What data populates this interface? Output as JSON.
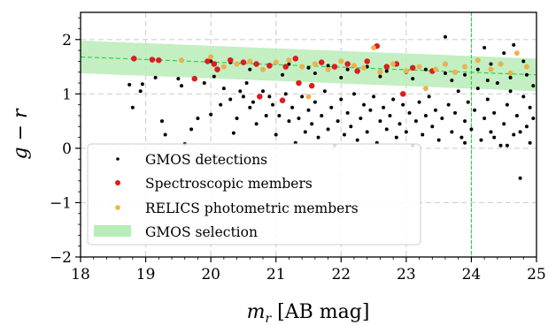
{
  "chart_data": {
    "type": "scatter",
    "xlabel": "m_r [AB mag]",
    "ylabel": "g − r",
    "xlim": [
      18,
      25
    ],
    "ylim": [
      -2,
      2.5
    ],
    "x_ticks": [
      18,
      19,
      20,
      21,
      22,
      23,
      24,
      25
    ],
    "y_ticks": [
      -2,
      -1,
      0,
      1,
      2
    ],
    "x_tick_labels": [
      "18",
      "19",
      "20",
      "21",
      "22",
      "23",
      "24",
      "25"
    ],
    "y_tick_labels": [
      "−2",
      "−1",
      "0",
      "1",
      "2"
    ],
    "grid": true,
    "legend_position": "lower-left",
    "vertical_line": {
      "x": 24,
      "color": "#2ecc40"
    },
    "selection_band": {
      "name": "GMOS selection",
      "color": "#b8ecb8",
      "center_line": [
        [
          18,
          1.68
        ],
        [
          25,
          1.35
        ]
      ],
      "half_width": 0.3
    },
    "series": [
      {
        "name": "GMOS detections",
        "color": "#000000",
        "marker_size": 2,
        "points": [
          [
            18.75,
            1.17
          ],
          [
            18.8,
            0.75
          ],
          [
            18.92,
            1.05
          ],
          [
            18.95,
            1.18
          ],
          [
            19.15,
            1.3
          ],
          [
            19.25,
            0.5
          ],
          [
            19.3,
            0.25
          ],
          [
            19.5,
            1.28
          ],
          [
            19.55,
            1.15
          ],
          [
            19.6,
            0.08
          ],
          [
            19.7,
            0.35
          ],
          [
            19.8,
            0.55
          ],
          [
            19.9,
            1.2
          ],
          [
            20.0,
            0.62
          ],
          [
            20.05,
            1.32
          ],
          [
            20.15,
            0.8
          ],
          [
            20.2,
            1.1
          ],
          [
            20.3,
            0.9
          ],
          [
            20.35,
            0.28
          ],
          [
            20.4,
            0.55
          ],
          [
            20.45,
            1.05
          ],
          [
            20.5,
            0.95
          ],
          [
            20.55,
            1.2
          ],
          [
            20.6,
            0.75
          ],
          [
            20.65,
            0.85
          ],
          [
            20.7,
            0.45
          ],
          [
            20.8,
            1.05
          ],
          [
            20.85,
            0.6
          ],
          [
            20.9,
            0.95
          ],
          [
            20.95,
            0.8
          ],
          [
            21.0,
            0.25
          ],
          [
            21.05,
            0.6
          ],
          [
            21.1,
            0.9
          ],
          [
            21.15,
            1.0
          ],
          [
            21.2,
            0.5
          ],
          [
            21.25,
            0.75
          ],
          [
            21.3,
            0.1
          ],
          [
            21.35,
            0.55
          ],
          [
            21.4,
            0.95
          ],
          [
            21.45,
            0.3
          ],
          [
            21.5,
            0.7
          ],
          [
            21.55,
            0.45
          ],
          [
            21.6,
            0.85
          ],
          [
            21.65,
            0.2
          ],
          [
            21.7,
            0.6
          ],
          [
            21.75,
            1.05
          ],
          [
            21.8,
            0.35
          ],
          [
            21.85,
            0.75
          ],
          [
            21.9,
            0.05
          ],
          [
            21.95,
            0.5
          ],
          [
            22.0,
            0.9
          ],
          [
            22.05,
            0.25
          ],
          [
            22.1,
            0.65
          ],
          [
            22.15,
            0.4
          ],
          [
            22.2,
            1.0
          ],
          [
            22.25,
            0.15
          ],
          [
            22.3,
            0.55
          ],
          [
            22.35,
            0.8
          ],
          [
            22.4,
            0.3
          ],
          [
            22.45,
            0.7
          ],
          [
            22.5,
            0.95
          ],
          [
            22.55,
            0.1
          ],
          [
            22.6,
            0.5
          ],
          [
            22.65,
            0.75
          ],
          [
            22.7,
            0.35
          ],
          [
            22.75,
            0.6
          ],
          [
            22.8,
            0.9
          ],
          [
            22.85,
            0.2
          ],
          [
            22.9,
            0.45
          ],
          [
            22.95,
            0.8
          ],
          [
            23.0,
            0.3
          ],
          [
            23.05,
            0.65
          ],
          [
            23.1,
            0.05
          ],
          [
            23.15,
            0.5
          ],
          [
            23.2,
            0.85
          ],
          [
            23.25,
            0.25
          ],
          [
            23.3,
            0.6
          ],
          [
            23.35,
            0.95
          ],
          [
            23.4,
            0.4
          ],
          [
            23.45,
            0.7
          ],
          [
            23.5,
            0.15
          ],
          [
            23.55,
            0.55
          ],
          [
            23.6,
            2.05
          ],
          [
            23.65,
            0.8
          ],
          [
            23.7,
            0.3
          ],
          [
            23.75,
            0.65
          ],
          [
            23.8,
            1.05
          ],
          [
            23.85,
            0.2
          ],
          [
            23.9,
            0.5
          ],
          [
            23.95,
            0.85
          ],
          [
            24.0,
            0.35
          ],
          [
            24.05,
            0.7
          ],
          [
            24.1,
            1.1
          ],
          [
            24.15,
            0.15
          ],
          [
            24.2,
            0.55
          ],
          [
            24.25,
            0.9
          ],
          [
            24.3,
            0.3
          ],
          [
            24.35,
            0.65
          ],
          [
            24.4,
            1.2
          ],
          [
            24.45,
            0.05
          ],
          [
            24.5,
            0.45
          ],
          [
            24.55,
            0.8
          ],
          [
            24.6,
            1.3
          ],
          [
            24.65,
            0.25
          ],
          [
            24.7,
            0.6
          ],
          [
            24.75,
            -0.55
          ],
          [
            24.8,
            0.95
          ],
          [
            24.85,
            0.4
          ],
          [
            24.9,
            0.75
          ],
          [
            24.95,
            1.15
          ],
          [
            24.2,
            1.85
          ],
          [
            24.5,
            1.75
          ],
          [
            24.8,
            1.6
          ],
          [
            24.3,
            1.55
          ],
          [
            24.65,
            1.9
          ],
          [
            24.1,
            1.45
          ],
          [
            24.9,
            0.1
          ],
          [
            24.55,
            0.05
          ],
          [
            24.35,
            0.2
          ],
          [
            24.75,
            0.3
          ],
          [
            23.9,
            0.1
          ],
          [
            24.95,
            0.55
          ],
          [
            24.6,
            1.05
          ],
          [
            24.25,
            1.25
          ],
          [
            24.85,
            1.35
          ],
          [
            20.6,
            1.45
          ],
          [
            20.9,
            1.5
          ],
          [
            21.2,
            1.55
          ],
          [
            21.5,
            1.48
          ],
          [
            21.8,
            1.52
          ],
          [
            22.1,
            1.45
          ],
          [
            22.4,
            1.5
          ],
          [
            22.7,
            1.42
          ],
          [
            23.0,
            1.4
          ],
          [
            23.3,
            1.45
          ],
          [
            23.6,
            1.38
          ],
          [
            23.9,
            1.35
          ],
          [
            21.1,
            1.35
          ],
          [
            21.6,
            1.38
          ],
          [
            22.0,
            1.3
          ],
          [
            22.6,
            1.32
          ],
          [
            23.1,
            1.28
          ],
          [
            23.7,
            1.25
          ],
          [
            20.3,
            1.58
          ],
          [
            20.0,
            1.6
          ]
        ]
      },
      {
        "name": "Spectroscopic members",
        "color": "#e31a1c",
        "marker_size": 3.2,
        "points": [
          [
            18.82,
            1.65
          ],
          [
            19.1,
            1.63
          ],
          [
            19.2,
            1.62
          ],
          [
            19.75,
            1.28
          ],
          [
            19.95,
            1.6
          ],
          [
            20.05,
            1.55
          ],
          [
            20.1,
            1.45
          ],
          [
            20.3,
            1.62
          ],
          [
            20.5,
            1.58
          ],
          [
            20.7,
            1.55
          ],
          [
            20.75,
            0.95
          ],
          [
            20.9,
            1.52
          ],
          [
            21.1,
            0.88
          ],
          [
            21.15,
            1.5
          ],
          [
            21.3,
            1.65
          ],
          [
            21.35,
            1.2
          ],
          [
            21.55,
            1.15
          ],
          [
            21.7,
            1.58
          ],
          [
            21.9,
            1.5
          ],
          [
            22.1,
            1.55
          ],
          [
            22.25,
            1.42
          ],
          [
            22.4,
            1.6
          ],
          [
            22.55,
            1.88
          ],
          [
            22.7,
            1.5
          ],
          [
            22.85,
            1.55
          ],
          [
            22.95,
            1.0
          ],
          [
            23.1,
            1.48
          ],
          [
            23.4,
            1.42
          ]
        ]
      },
      {
        "name": "RELICS photometric members",
        "color": "#f5b041",
        "marker_size": 2.8,
        "points": [
          [
            19.55,
            1.62
          ],
          [
            20.0,
            1.68
          ],
          [
            20.2,
            1.5
          ],
          [
            20.4,
            1.55
          ],
          [
            20.6,
            1.6
          ],
          [
            20.8,
            1.45
          ],
          [
            21.0,
            1.58
          ],
          [
            21.2,
            1.62
          ],
          [
            21.4,
            1.5
          ],
          [
            21.5,
            0.95
          ],
          [
            21.6,
            1.55
          ],
          [
            21.8,
            1.45
          ],
          [
            22.0,
            1.6
          ],
          [
            22.2,
            1.52
          ],
          [
            22.35,
            1.48
          ],
          [
            22.5,
            1.85
          ],
          [
            22.6,
            1.4
          ],
          [
            22.8,
            1.55
          ],
          [
            23.0,
            1.42
          ],
          [
            23.2,
            1.5
          ],
          [
            23.3,
            1.1
          ],
          [
            23.45,
            1.45
          ],
          [
            23.6,
            1.55
          ],
          [
            23.75,
            1.4
          ],
          [
            23.9,
            1.5
          ],
          [
            24.1,
            1.62
          ],
          [
            24.3,
            1.45
          ],
          [
            24.45,
            1.55
          ],
          [
            24.6,
            1.38
          ],
          [
            24.7,
            1.75
          ],
          [
            24.85,
            1.5
          ]
        ]
      }
    ],
    "legend": [
      "GMOS detections",
      "Spectroscopic members",
      "RELICS photometric members",
      "GMOS selection"
    ]
  }
}
